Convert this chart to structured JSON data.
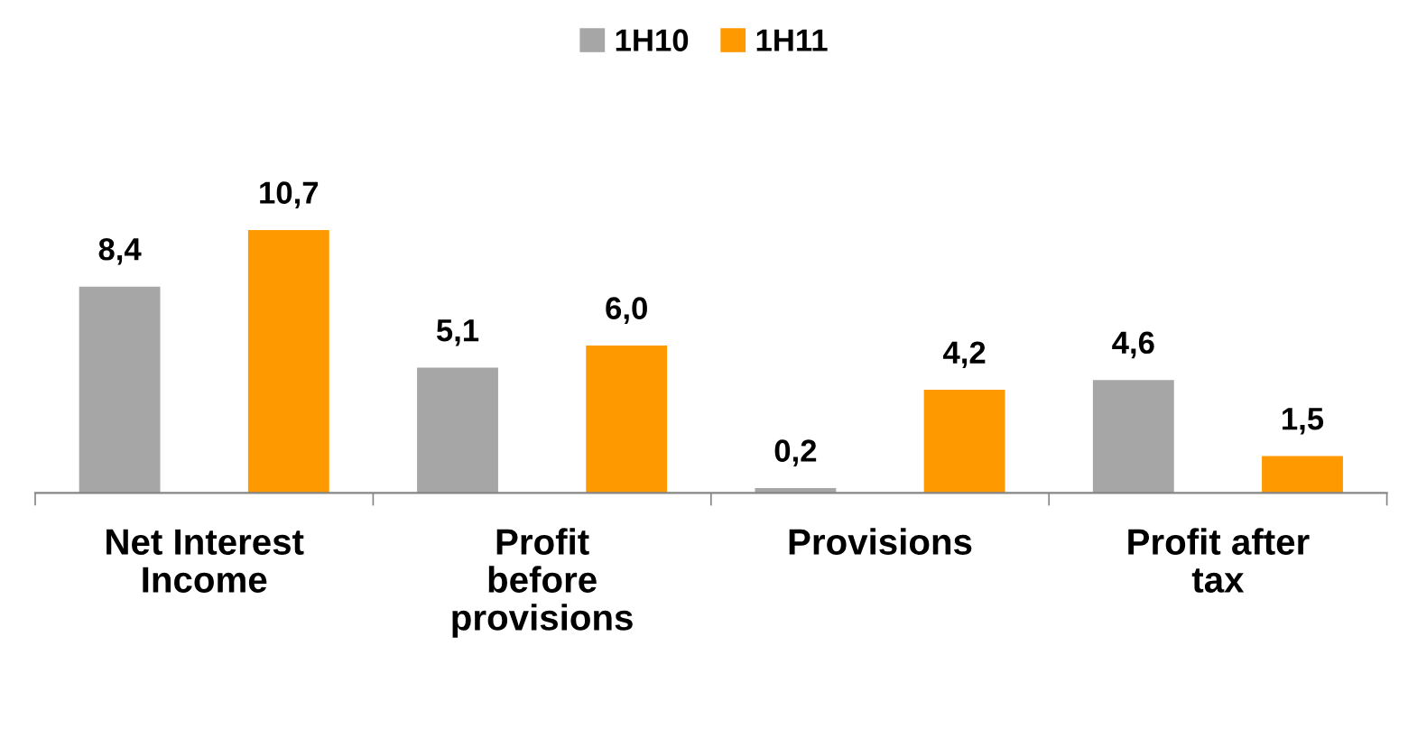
{
  "chart_data": {
    "type": "bar",
    "categories": [
      "Net Interest\nIncome",
      "Profit\nbefore\nprovisions",
      "Provisions",
      "Profit after\ntax"
    ],
    "series": [
      {
        "name": "1H10",
        "color": "#a6a6a6",
        "values": [
          8.4,
          5.1,
          0.2,
          4.6
        ],
        "value_labels": [
          "8,4",
          "5,1",
          "0,2",
          "4,6"
        ]
      },
      {
        "name": "1H11",
        "color": "#ff9900",
        "values": [
          10.7,
          6.0,
          4.2,
          1.5
        ],
        "value_labels": [
          "10,7",
          "6,0",
          "4,2",
          "1,5"
        ]
      }
    ],
    "legend": "top"
  }
}
